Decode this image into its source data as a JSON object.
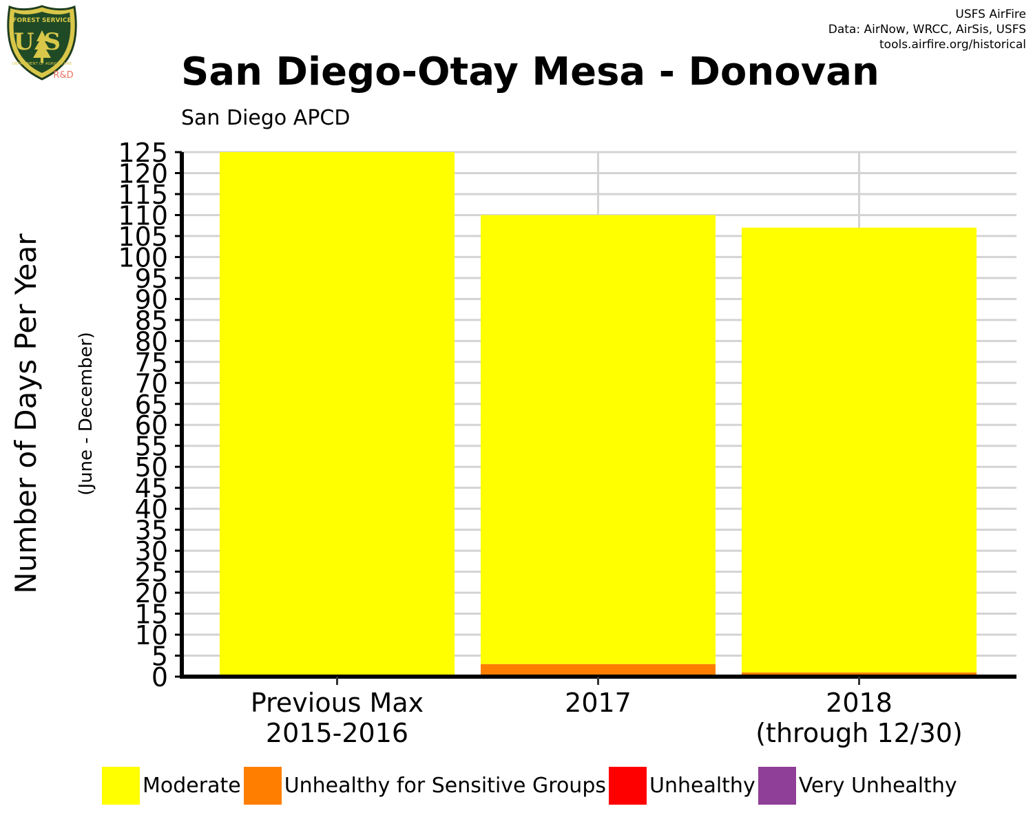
{
  "credits": [
    "USFS AirFire",
    "Data: AirNow, WRCC, AirSis, USFS",
    "tools.airfire.org/historical"
  ],
  "logo": {
    "shield_text_top": "FOREST SERVICE",
    "shield_text_main": "US",
    "shield_text_bottom": "DEPARTMENT OF AGRICULTURE",
    "badge": "R&D",
    "icon": "usfs-shield-icon"
  },
  "chart_data": {
    "type": "bar",
    "stacked": true,
    "title": "San Diego-Otay Mesa - Donovan",
    "subtitle": "San Diego APCD",
    "ylabel": "Number of Days Per Year",
    "ylabel_sub": "(June - December)",
    "xlabel": "",
    "ylim": [
      0,
      125
    ],
    "yticks": [
      0,
      5,
      10,
      15,
      20,
      25,
      30,
      35,
      40,
      45,
      50,
      55,
      60,
      65,
      70,
      75,
      80,
      85,
      90,
      95,
      100,
      105,
      110,
      115,
      120,
      125
    ],
    "grid": true,
    "categories": [
      [
        "Previous Max",
        "2015-2016"
      ],
      [
        "2017"
      ],
      [
        "2018",
        "(through 12/30)"
      ]
    ],
    "series": [
      {
        "name": "Unhealthy for Sensitive Groups",
        "color": "#FF7E00",
        "values": [
          0,
          3,
          1
        ]
      },
      {
        "name": "Moderate",
        "color": "#FFFF00",
        "values": [
          125,
          107,
          106
        ]
      },
      {
        "name": "Unhealthy",
        "color": "#FF0000",
        "values": [
          0,
          0,
          0
        ]
      },
      {
        "name": "Very Unhealthy",
        "color": "#8F3F97",
        "values": [
          0,
          0,
          0
        ]
      }
    ],
    "legend": {
      "position": "bottom",
      "items": [
        {
          "name": "Moderate",
          "color": "#FFFF00"
        },
        {
          "name": "Unhealthy for Sensitive Groups",
          "color": "#FF7E00"
        },
        {
          "name": "Unhealthy",
          "color": "#FF0000"
        },
        {
          "name": "Very Unhealthy",
          "color": "#8F3F97"
        }
      ]
    }
  }
}
